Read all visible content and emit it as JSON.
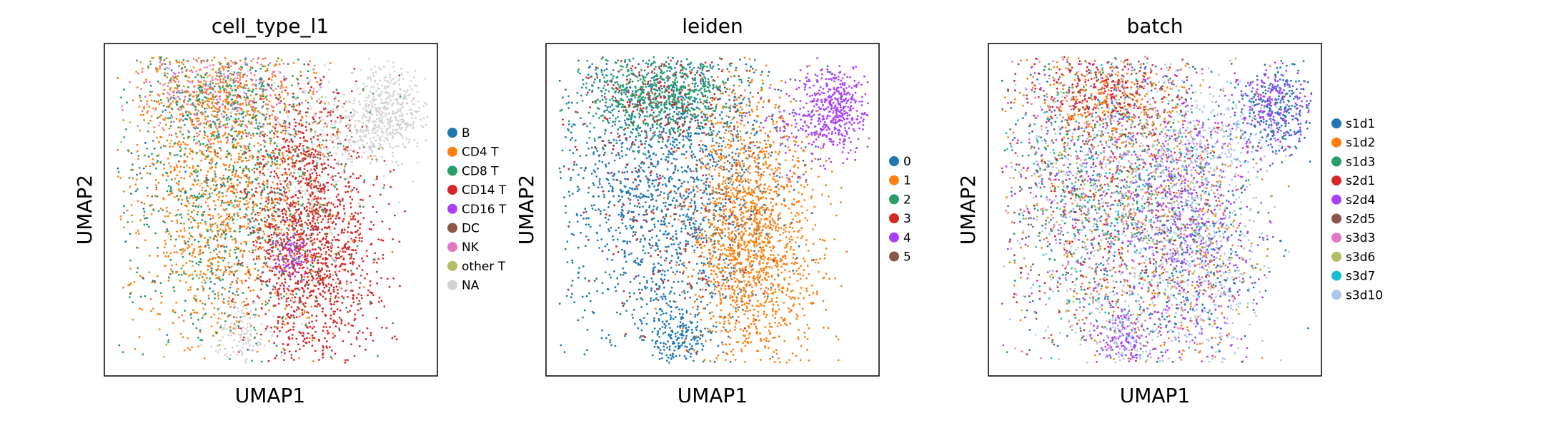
{
  "chart_data": [
    {
      "type": "scatter",
      "title": "cell_type_l1",
      "xlabel": "UMAP1",
      "ylabel": "UMAP2",
      "xticks": [],
      "yticks": [],
      "legend_position": "right",
      "series": [
        {
          "name": "B",
          "color": "#1f77b4"
        },
        {
          "name": "CD4 T",
          "color": "#ff7f0e"
        },
        {
          "name": "CD8 T",
          "color": "#279e68"
        },
        {
          "name": "CD14 T",
          "color": "#d62728"
        },
        {
          "name": "CD16 T",
          "color": "#aa40fc"
        },
        {
          "name": "DC",
          "color": "#8c564b"
        },
        {
          "name": "NK",
          "color": "#e377c2"
        },
        {
          "name": "other T",
          "color": "#b5bd61"
        },
        {
          "name": "NA",
          "color": "#d3d3d3"
        }
      ]
    },
    {
      "type": "scatter",
      "title": "leiden",
      "xlabel": "UMAP1",
      "ylabel": "UMAP2",
      "xticks": [],
      "yticks": [],
      "legend_position": "right",
      "series": [
        {
          "name": "0",
          "color": "#1f77b4"
        },
        {
          "name": "1",
          "color": "#ff7f0e"
        },
        {
          "name": "2",
          "color": "#279e68"
        },
        {
          "name": "3",
          "color": "#d62728"
        },
        {
          "name": "4",
          "color": "#aa40fc"
        },
        {
          "name": "5",
          "color": "#8c564b"
        }
      ]
    },
    {
      "type": "scatter",
      "title": "batch",
      "xlabel": "UMAP1",
      "ylabel": "UMAP2",
      "xticks": [],
      "yticks": [],
      "legend_position": "right",
      "series": [
        {
          "name": "s1d1",
          "color": "#1f77b4"
        },
        {
          "name": "s1d2",
          "color": "#ff7f0e"
        },
        {
          "name": "s1d3",
          "color": "#279e68"
        },
        {
          "name": "s2d1",
          "color": "#d62728"
        },
        {
          "name": "s2d4",
          "color": "#aa40fc"
        },
        {
          "name": "s2d5",
          "color": "#8c564b"
        },
        {
          "name": "s3d3",
          "color": "#e377c2"
        },
        {
          "name": "s3d6",
          "color": "#b5bd61"
        },
        {
          "name": "s3d7",
          "color": "#17becf"
        },
        {
          "name": "s3d10",
          "color": "#aec7e8"
        }
      ]
    }
  ]
}
